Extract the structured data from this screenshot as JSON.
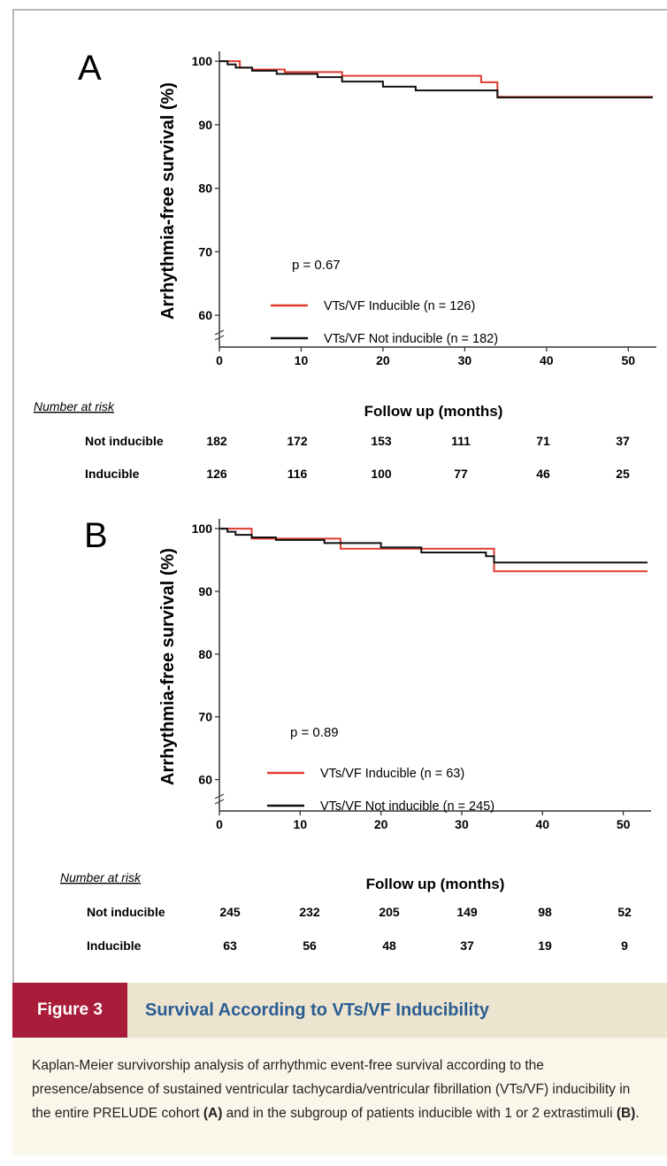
{
  "chart_data": [
    {
      "type": "line",
      "panel_label": "A",
      "ylabel": "Arrhythmia-free survival (%)",
      "xlabel": "Follow up (months)",
      "xlim": [
        0,
        53
      ],
      "ylim": [
        55,
        101
      ],
      "x_ticks": [
        0,
        10,
        20,
        30,
        40,
        50
      ],
      "y_ticks": [
        60,
        70,
        80,
        90,
        100
      ],
      "p_value": "p = 0.67",
      "series": [
        {
          "name": "VTs/VF Inducible  (n = 126)",
          "color": "#e03a2f",
          "x": [
            0,
            1.5,
            2.5,
            4,
            8,
            15,
            32,
            34,
            53
          ],
          "y": [
            100,
            100,
            99,
            98.7,
            98.3,
            97.7,
            96.7,
            94.4,
            94.4
          ]
        },
        {
          "name": "VTs/VF Not inducible (n = 182)",
          "color": "#111111",
          "x": [
            0,
            1,
            2,
            4,
            7,
            12,
            15,
            20,
            24,
            34,
            53
          ],
          "y": [
            100,
            99.5,
            99,
            98.5,
            98,
            97.5,
            96.8,
            96,
            95.4,
            94.3,
            94.3
          ]
        }
      ],
      "risk_table": {
        "heading": "Number at risk",
        "rows": [
          {
            "label": "Not inducible",
            "values": [
              "182",
              "172",
              "153",
              "111",
              "71",
              "37"
            ]
          },
          {
            "label": "Inducible",
            "values": [
              "126",
              "116",
              "100",
              "77",
              "46",
              "25"
            ]
          }
        ]
      }
    },
    {
      "type": "line",
      "panel_label": "B",
      "ylabel": "Arrhythmia-free survival (%)",
      "xlabel": "Follow up (months)",
      "xlim": [
        0,
        53
      ],
      "ylim": [
        55,
        101
      ],
      "x_ticks": [
        0,
        10,
        20,
        30,
        40,
        50
      ],
      "y_ticks": [
        60,
        70,
        80,
        90,
        100
      ],
      "p_value": "p = 0.89",
      "series": [
        {
          "name": "VTs/VF Inducible  (n = 63)",
          "color": "#e03a2f",
          "x": [
            0,
            1.5,
            4,
            8,
            15,
            20,
            24,
            34,
            53
          ],
          "y": [
            100,
            100,
            98.4,
            98.4,
            96.8,
            96.8,
            96.8,
            93.2,
            93.2
          ]
        },
        {
          "name": "VTs/VF Not inducible (n = 245)",
          "color": "#111111",
          "x": [
            0,
            1,
            2,
            4,
            7,
            13,
            20,
            25,
            33,
            34,
            53
          ],
          "y": [
            100,
            99.5,
            99,
            98.6,
            98.2,
            97.7,
            97,
            96.2,
            95.6,
            94.6,
            94.6
          ]
        }
      ],
      "risk_table": {
        "heading": "Number at risk",
        "rows": [
          {
            "label": "Not inducible",
            "values": [
              "245",
              "232",
              "205",
              "149",
              "98",
              "52"
            ]
          },
          {
            "label": "Inducible",
            "values": [
              "63",
              "56",
              "48",
              "37",
              "19",
              "9"
            ]
          }
        ]
      }
    }
  ],
  "figure": {
    "label": "Figure 3",
    "title": "Survival According to VTs/VF Inducibility",
    "caption_parts": [
      "Kaplan-Meier survivorship analysis of arrhythmic event-free survival according to the presence/absence of sustained ventricular tachycardia/ventricular fibrillation (VTs/VF) inducibility in the entire PRELUDE cohort ",
      "(A)",
      " and in the subgroup of patients inducible with 1 or 2 extrastimuli ",
      "(B)",
      "."
    ]
  }
}
